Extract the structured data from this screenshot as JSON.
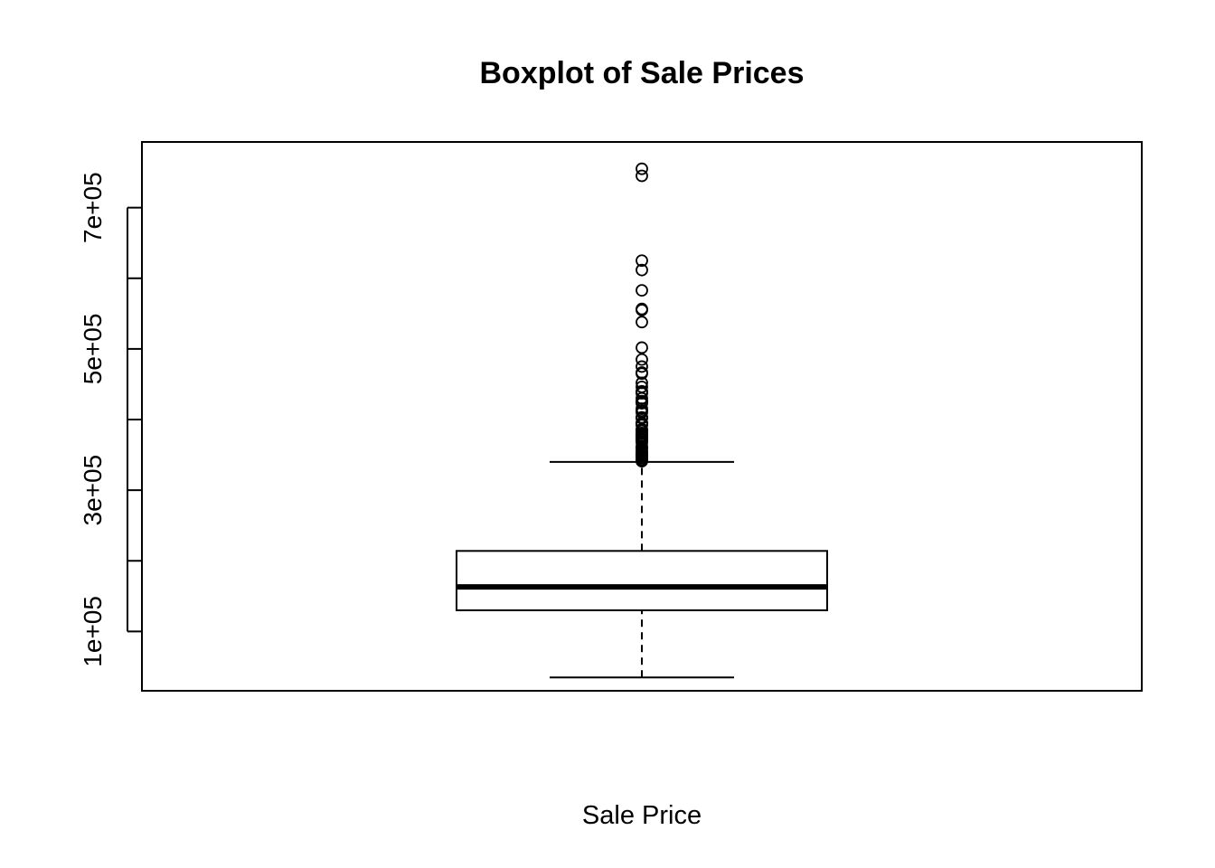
{
  "chart_data": {
    "type": "boxplot",
    "title": "Boxplot of Sale Prices",
    "xlabel": "Sale Price",
    "ylabel": "",
    "ylim": [
      16000,
      793000
    ],
    "yticks": [
      100000,
      200000,
      300000,
      400000,
      500000,
      600000,
      700000
    ],
    "ytick_labels": [
      {
        "value": 100000,
        "label": "1e+05"
      },
      {
        "value": 300000,
        "label": "3e+05"
      },
      {
        "value": 500000,
        "label": "5e+05"
      },
      {
        "value": 700000,
        "label": "7e+05"
      }
    ],
    "grid": false,
    "box": {
      "name": "Sale Price",
      "whisker_low": 34900,
      "q1": 129950,
      "median": 163000,
      "q3": 214000,
      "whisker_high": 340000
    },
    "outliers": [
      341000,
      342643,
      345000,
      345474,
      348000,
      350000,
      350000,
      352000,
      354000,
      355000,
      359100,
      360000,
      361919,
      367294,
      369900,
      370878,
      372402,
      372500,
      374000,
      375000,
      377426,
      377500,
      380000,
      381000,
      383970,
      385000,
      386250,
      392000,
      394432,
      394617,
      395000,
      395192,
      402000,
      402861,
      403000,
      410000,
      412500,
      415298,
      423000,
      424870,
      426000,
      430000,
      437154,
      438780,
      440000,
      446261,
      451950,
      465000,
      466500,
      475000,
      485000,
      501837,
      538000,
      555000,
      556581,
      582933,
      611657,
      625000,
      745000,
      755000
    ]
  }
}
